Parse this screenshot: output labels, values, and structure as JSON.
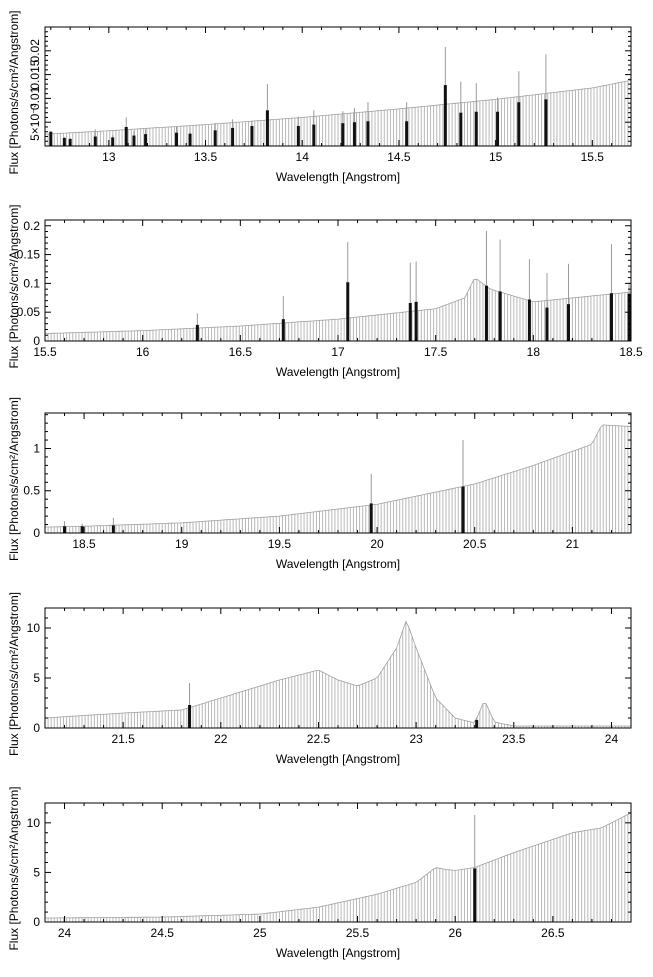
{
  "chart_data": [
    {
      "type": "bar",
      "xlabel": "Wavelength [Angstrom]",
      "ylabel": "Flux [Photons/s/cm²/Angstrom]",
      "xlim": [
        12.67,
        15.7
      ],
      "ylim": [
        0,
        0.025
      ],
      "xticks": [
        13,
        13.5,
        14,
        14.5,
        15,
        15.5
      ],
      "xtick_labels": [
        "13",
        "13.5",
        "14",
        "14.5",
        "15",
        "15.5"
      ],
      "yticks": [
        0.005,
        0.01,
        0.015,
        0.02
      ],
      "ytick_labels": [
        "5×10⁻³",
        "0.01",
        "0.015",
        "0.02"
      ],
      "continuum": [
        [
          12.67,
          0.0025
        ],
        [
          13.0,
          0.0032
        ],
        [
          13.5,
          0.0045
        ],
        [
          14.0,
          0.006
        ],
        [
          14.5,
          0.0078
        ],
        [
          15.0,
          0.0098
        ],
        [
          15.5,
          0.0122
        ],
        [
          15.7,
          0.0138
        ]
      ],
      "lines": [
        {
          "x": 12.7,
          "y": 0.003,
          "err": 0.0002
        },
        {
          "x": 12.77,
          "y": 0.0017,
          "err": 0.0002
        },
        {
          "x": 12.8,
          "y": 0.0015,
          "err": 0.0002
        },
        {
          "x": 12.93,
          "y": 0.002,
          "err": 0.0015
        },
        {
          "x": 13.02,
          "y": 0.0018,
          "err": 0.0005
        },
        {
          "x": 13.09,
          "y": 0.004,
          "err": 0.002
        },
        {
          "x": 13.13,
          "y": 0.0022,
          "err": 0.001
        },
        {
          "x": 13.19,
          "y": 0.0025,
          "err": 0.001
        },
        {
          "x": 13.35,
          "y": 0.0028,
          "err": 0.0012
        },
        {
          "x": 13.42,
          "y": 0.0026,
          "err": 0.0015
        },
        {
          "x": 13.55,
          "y": 0.0033,
          "err": 0.0015
        },
        {
          "x": 13.64,
          "y": 0.0038,
          "err": 0.0018
        },
        {
          "x": 13.74,
          "y": 0.0042,
          "err": 0.001
        },
        {
          "x": 13.82,
          "y": 0.0075,
          "err": 0.0055
        },
        {
          "x": 13.98,
          "y": 0.0042,
          "err": 0.002
        },
        {
          "x": 14.06,
          "y": 0.0045,
          "err": 0.003
        },
        {
          "x": 14.21,
          "y": 0.0048,
          "err": 0.0025
        },
        {
          "x": 14.27,
          "y": 0.005,
          "err": 0.003
        },
        {
          "x": 14.34,
          "y": 0.0052,
          "err": 0.004
        },
        {
          "x": 14.54,
          "y": 0.0052,
          "err": 0.004
        },
        {
          "x": 14.74,
          "y": 0.0128,
          "err": 0.008
        },
        {
          "x": 14.82,
          "y": 0.007,
          "err": 0.0065
        },
        {
          "x": 14.9,
          "y": 0.0072,
          "err": 0.006
        },
        {
          "x": 15.01,
          "y": 0.0072,
          "err": 0.003
        },
        {
          "x": 15.12,
          "y": 0.0092,
          "err": 0.0065
        },
        {
          "x": 15.26,
          "y": 0.0098,
          "err": 0.0095
        }
      ]
    },
    {
      "type": "bar",
      "xlabel": "Wavelength [Angstrom]",
      "ylabel": "Flux [Photons/s/cm²/Angstrom]",
      "xlim": [
        15.5,
        18.5
      ],
      "ylim": [
        0,
        0.21
      ],
      "xticks": [
        15.5,
        16,
        16.5,
        17,
        17.5,
        18,
        18.5
      ],
      "xtick_labels": [
        "15.5",
        "16",
        "16.5",
        "17",
        "17.5",
        "18",
        "18.5"
      ],
      "yticks": [
        0,
        0.05,
        0.1,
        0.15,
        0.2
      ],
      "ytick_labels": [
        "0",
        "0.05",
        "0.1",
        "0.15",
        "0.2"
      ],
      "continuum": [
        [
          15.5,
          0.013
        ],
        [
          16.0,
          0.018
        ],
        [
          16.5,
          0.026
        ],
        [
          17.0,
          0.038
        ],
        [
          17.5,
          0.056
        ],
        [
          17.65,
          0.075
        ],
        [
          17.7,
          0.11
        ],
        [
          17.78,
          0.09
        ],
        [
          18.0,
          0.068
        ],
        [
          18.5,
          0.085
        ]
      ],
      "lines": [
        {
          "x": 16.28,
          "y": 0.028,
          "err": 0.02
        },
        {
          "x": 16.72,
          "y": 0.038,
          "err": 0.04
        },
        {
          "x": 17.05,
          "y": 0.102,
          "err": 0.07
        },
        {
          "x": 17.37,
          "y": 0.066,
          "err": 0.07
        },
        {
          "x": 17.4,
          "y": 0.068,
          "err": 0.07
        },
        {
          "x": 17.76,
          "y": 0.096,
          "err": 0.095
        },
        {
          "x": 17.83,
          "y": 0.086,
          "err": 0.09
        },
        {
          "x": 17.98,
          "y": 0.072,
          "err": 0.07
        },
        {
          "x": 18.07,
          "y": 0.058,
          "err": 0.06
        },
        {
          "x": 18.18,
          "y": 0.064,
          "err": 0.07
        },
        {
          "x": 18.4,
          "y": 0.083,
          "err": 0.085
        },
        {
          "x": 18.49,
          "y": 0.082,
          "err": 0.02
        }
      ]
    },
    {
      "type": "bar",
      "xlabel": "Wavelength [Angstrom]",
      "ylabel": "Flux [Photons/s/cm²/Angstrom]",
      "xlim": [
        18.3,
        21.3
      ],
      "ylim": [
        0,
        1.42
      ],
      "xticks": [
        18.5,
        19,
        19.5,
        20,
        20.5,
        21
      ],
      "xtick_labels": [
        "18.5",
        "19",
        "19.5",
        "20",
        "20.5",
        "21"
      ],
      "yticks": [
        0,
        0.5,
        1
      ],
      "ytick_labels": [
        "0",
        "0.5",
        "1"
      ],
      "continuum": [
        [
          18.3,
          0.07
        ],
        [
          18.5,
          0.08
        ],
        [
          19.0,
          0.12
        ],
        [
          19.5,
          0.2
        ],
        [
          20.0,
          0.34
        ],
        [
          20.5,
          0.58
        ],
        [
          20.8,
          0.8
        ],
        [
          21.1,
          1.05
        ],
        [
          21.15,
          1.28
        ],
        [
          21.3,
          1.26
        ]
      ],
      "lines": [
        {
          "x": 18.4,
          "y": 0.08,
          "err": 0.06
        },
        {
          "x": 18.49,
          "y": 0.08,
          "err": 0.03
        },
        {
          "x": 18.65,
          "y": 0.09,
          "err": 0.09
        },
        {
          "x": 19.97,
          "y": 0.35,
          "err": 0.35
        },
        {
          "x": 20.44,
          "y": 0.55,
          "err": 0.55
        }
      ]
    },
    {
      "type": "bar",
      "xlabel": "Wavelength [Angstrom]",
      "ylabel": "Flux [Photons/s/cm²/Angstrom]",
      "xlim": [
        21.1,
        24.1
      ],
      "ylim": [
        0,
        12.0
      ],
      "xticks": [
        21.5,
        22,
        22.5,
        23,
        23.5,
        24
      ],
      "xtick_labels": [
        "21.5",
        "22",
        "22.5",
        "23",
        "23.5",
        "24"
      ],
      "yticks": [
        0,
        5,
        10
      ],
      "ytick_labels": [
        "0",
        "5",
        "10"
      ],
      "continuum": [
        [
          21.1,
          1.0
        ],
        [
          21.5,
          1.5
        ],
        [
          21.8,
          1.8
        ],
        [
          22.0,
          3.0
        ],
        [
          22.3,
          4.8
        ],
        [
          22.5,
          5.8
        ],
        [
          22.6,
          4.8
        ],
        [
          22.7,
          4.2
        ],
        [
          22.8,
          5.0
        ],
        [
          22.9,
          8.0
        ],
        [
          22.95,
          10.8
        ],
        [
          23.0,
          8.0
        ],
        [
          23.1,
          3.0
        ],
        [
          23.2,
          1.0
        ],
        [
          23.3,
          0.5
        ],
        [
          23.35,
          2.8
        ],
        [
          23.4,
          0.6
        ],
        [
          23.5,
          0.2
        ],
        [
          24.1,
          0.2
        ]
      ],
      "lines": [
        {
          "x": 21.84,
          "y": 2.3,
          "err": 2.2
        },
        {
          "x": 23.31,
          "y": 0.8,
          "err": 0.3
        }
      ]
    },
    {
      "type": "bar",
      "xlabel": "Wavelength [Angstrom]",
      "ylabel": "Flux [Photons/s/cm²/Angstrom]",
      "xlim": [
        23.9,
        26.9
      ],
      "ylim": [
        0,
        12.0
      ],
      "xticks": [
        24,
        24.5,
        25,
        25.5,
        26,
        26.5
      ],
      "xtick_labels": [
        "24",
        "24.5",
        "25",
        "25.5",
        "26",
        "26.5"
      ],
      "yticks": [
        0,
        5,
        10
      ],
      "ytick_labels": [
        "0",
        "5",
        "10"
      ],
      "continuum": [
        [
          23.9,
          0.4
        ],
        [
          24.5,
          0.5
        ],
        [
          25.0,
          0.8
        ],
        [
          25.3,
          1.5
        ],
        [
          25.6,
          2.8
        ],
        [
          25.8,
          4.0
        ],
        [
          25.9,
          5.5
        ],
        [
          25.95,
          5.3
        ],
        [
          26.0,
          5.2
        ],
        [
          26.1,
          5.5
        ],
        [
          26.3,
          7.0
        ],
        [
          26.6,
          9.0
        ],
        [
          26.75,
          9.5
        ],
        [
          26.9,
          11.0
        ]
      ],
      "lines": [
        {
          "x": 26.1,
          "y": 5.4,
          "err": 5.4
        }
      ]
    }
  ]
}
